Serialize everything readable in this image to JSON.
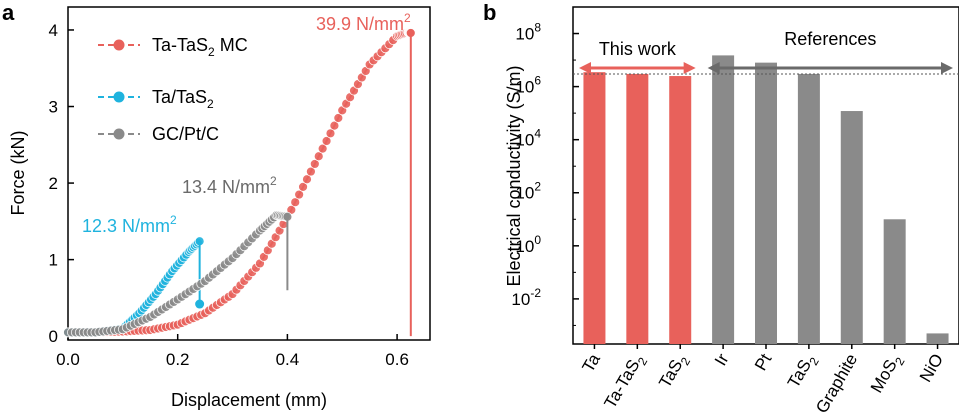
{
  "colors": {
    "red": "#e8615b",
    "blue": "#1fb3de",
    "gray": "#8a8a8a",
    "dark": "#6a6a6a",
    "black": "#000000"
  },
  "chart_data": [
    {
      "panel_label": "a",
      "type": "scatter",
      "xlabel": "Displacement (mm)",
      "ylabel": "Force (kN)",
      "xlim": [
        0.0,
        0.66
      ],
      "ylim": [
        -0.05,
        4.3
      ],
      "xticks": [
        "0.0",
        "0.2",
        "0.4",
        "0.6"
      ],
      "yticks": [
        "0",
        "1",
        "2",
        "3",
        "4"
      ],
      "series": [
        {
          "name": "Ta-TaS2 MC",
          "label_main": "Ta-TaS",
          "label_sub": "2",
          "label_tail": " MC",
          "color_key": "red",
          "x": [
            0.0,
            0.05,
            0.1,
            0.15,
            0.2,
            0.25,
            0.3,
            0.35,
            0.4,
            0.45,
            0.5,
            0.55,
            0.6,
            0.62,
            0.625
          ],
          "y": [
            0.05,
            0.05,
            0.06,
            0.08,
            0.15,
            0.3,
            0.55,
            0.95,
            1.55,
            2.25,
            2.95,
            3.55,
            3.92,
            3.97,
            3.96
          ],
          "drop_x": 0.625,
          "drop_to": 0.0,
          "annotation_main": "39.9 N/mm",
          "annotation_sup": "2"
        },
        {
          "name": "Ta/TaS2",
          "label_main": "Ta/TaS",
          "label_sub": "2",
          "label_tail": "",
          "color_key": "blue",
          "x": [
            0.0,
            0.05,
            0.1,
            0.13,
            0.16,
            0.19,
            0.22,
            0.24
          ],
          "y": [
            0.05,
            0.05,
            0.1,
            0.3,
            0.55,
            0.85,
            1.1,
            1.24
          ],
          "drop_x": 0.24,
          "drop_to": 0.42,
          "annotation_main": "12.3 N/mm",
          "annotation_sup": "2"
        },
        {
          "name": "GC/Pt/C",
          "label_main": "GC/Pt/C",
          "label_sub": "",
          "label_tail": "",
          "color_key": "gray",
          "x": [
            0.0,
            0.05,
            0.1,
            0.15,
            0.2,
            0.25,
            0.3,
            0.35,
            0.38,
            0.4
          ],
          "y": [
            0.05,
            0.05,
            0.09,
            0.25,
            0.48,
            0.72,
            1.02,
            1.38,
            1.58,
            1.56
          ],
          "drop_x": 0.4,
          "drop_to": 0.6,
          "annotation_main": "13.4 N/mm",
          "annotation_sup": "2"
        }
      ]
    },
    {
      "panel_label": "b",
      "type": "bar",
      "xlabel": "",
      "ylabel": "Electrical conductivity (S/m)",
      "yscale": "log",
      "ylim_exponent": [
        -3.7,
        9.0
      ],
      "yticks": [
        {
          "exp": 8,
          "base": "10",
          "sup": "8"
        },
        {
          "exp": 6,
          "base": "10",
          "sup": "6"
        },
        {
          "exp": 4,
          "base": "10",
          "sup": "4"
        },
        {
          "exp": 2,
          "base": "10",
          "sup": "2"
        },
        {
          "exp": 0,
          "base": "10",
          "sup": "0"
        },
        {
          "exp": -2,
          "base": "10",
          "sup": "-2"
        }
      ],
      "categories": [
        {
          "name": "Ta",
          "main": "Ta",
          "sub": ""
        },
        {
          "name": "Ta-TaS2",
          "main": "Ta-TaS",
          "sub": "2"
        },
        {
          "name": "TaS2",
          "main": "TaS",
          "sub": "2"
        },
        {
          "name": "Ir",
          "main": "Ir",
          "sub": ""
        },
        {
          "name": "Pt",
          "main": "Pt",
          "sub": ""
        },
        {
          "name": "TaS2",
          "main": "TaS",
          "sub": "2"
        },
        {
          "name": "Graphite",
          "main": "Graphite",
          "sub": ""
        },
        {
          "name": "MoS2",
          "main": "MoS",
          "sub": "2"
        },
        {
          "name": "NiO",
          "main": "NiO",
          "sub": ""
        }
      ],
      "values": [
        3500000,
        3000000,
        2500000,
        15000000,
        8000000,
        3000000,
        120000,
        10,
        0.0005
      ],
      "bar_colors": [
        "red",
        "red",
        "red",
        "gray",
        "gray",
        "gray",
        "gray",
        "gray",
        "gray"
      ],
      "reference_line_value": 3000000,
      "annotations": [
        {
          "text": "This work",
          "color_key": "black",
          "arrow_color_key": "red"
        },
        {
          "text": "References",
          "color_key": "black",
          "arrow_color_key": "dark"
        }
      ]
    }
  ]
}
